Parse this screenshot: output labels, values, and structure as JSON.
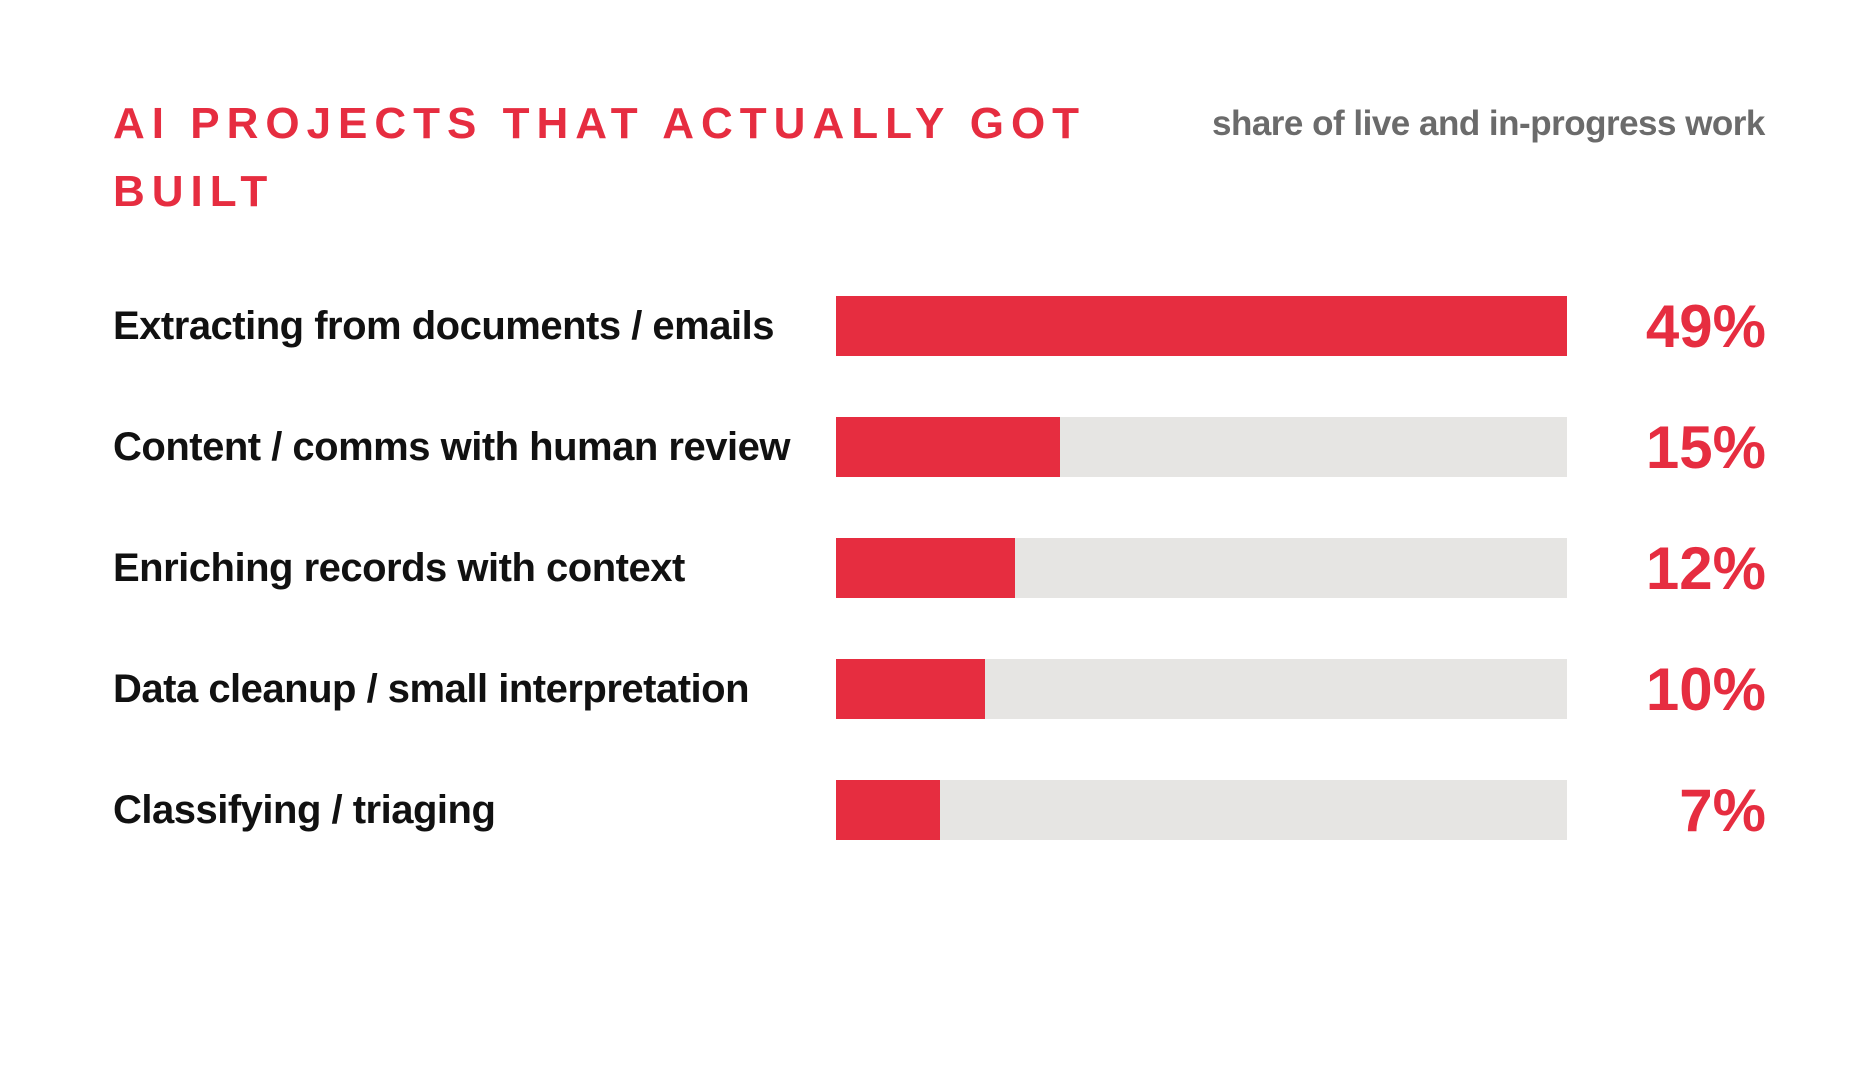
{
  "chart_data": {
    "type": "bar",
    "orientation": "horizontal",
    "title": "AI PROJECTS THAT ACTUALLY GOT BUILT",
    "subtitle": "share of live and in-progress work",
    "categories": [
      "Extracting from documents / emails",
      "Content / comms with human review",
      "Enriching records with context",
      "Data cleanup / small interpretation",
      "Classifying / triaging"
    ],
    "values": [
      49,
      15,
      12,
      10,
      7
    ],
    "value_labels": [
      "49%",
      "15%",
      "12%",
      "10%",
      "7%"
    ],
    "color": "#e62d40",
    "track_color": "#e6e5e3"
  }
}
